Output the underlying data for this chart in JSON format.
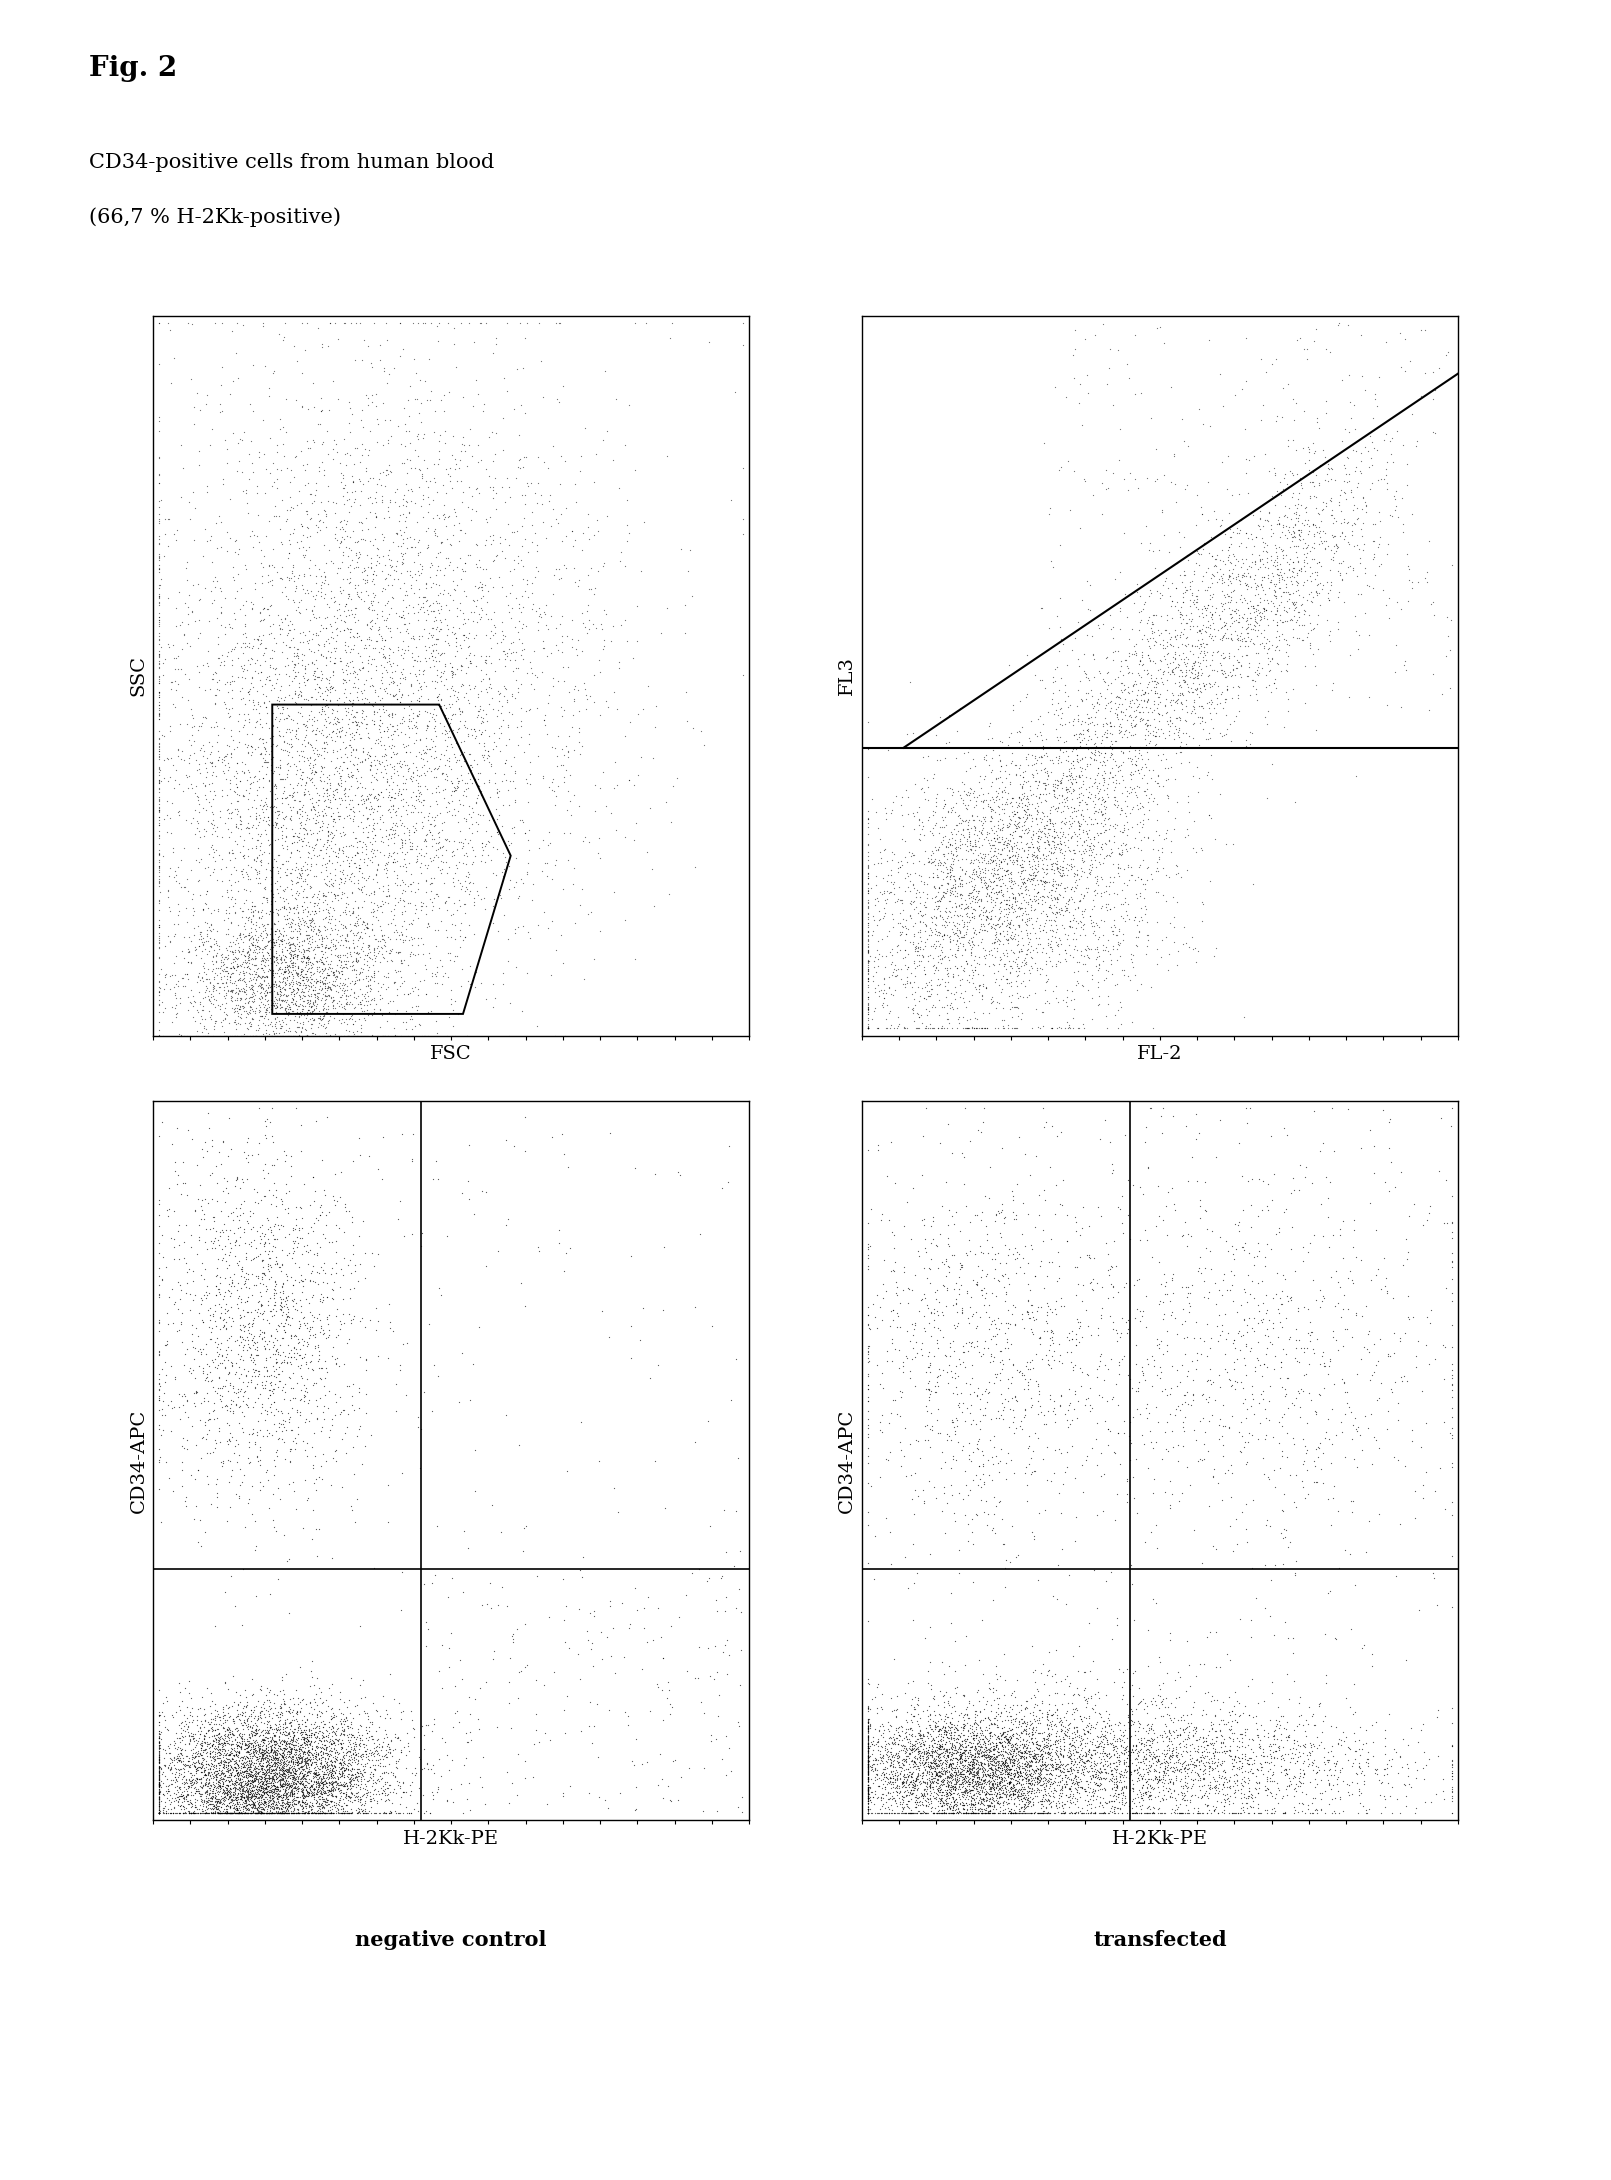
{
  "fig_label": "Fig. 2",
  "subtitle1": "CD34-positive cells from human blood",
  "subtitle2": "(66,7 % H-2Kk-positive)",
  "plot1": {
    "xlabel": "FSC",
    "ylabel": "SSC",
    "n_points": 8000
  },
  "plot2": {
    "xlabel": "FL-2",
    "ylabel": "FL3",
    "n_points": 6000
  },
  "plot3": {
    "xlabel": "H-2Kk-PE",
    "ylabel": "CD34-APC",
    "hline": 0.35,
    "vline": 0.45,
    "n_points": 8000
  },
  "plot4": {
    "xlabel": "H-2Kk-PE",
    "ylabel": "CD34-APC",
    "hline": 0.35,
    "vline": 0.45,
    "n_points": 9000
  },
  "label_neg": "negative control",
  "label_trans": "transfected",
  "bg_color": "#ffffff"
}
